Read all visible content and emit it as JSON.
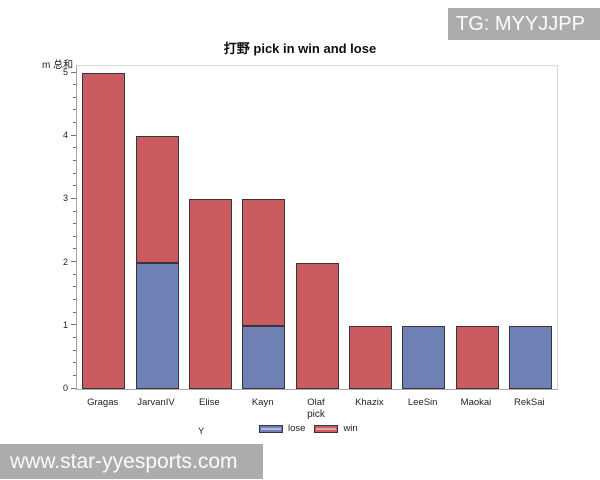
{
  "watermarks": {
    "top_right": "TG: MYYJJPP",
    "bottom_left": "www.star-yyesports.com"
  },
  "chart_data": {
    "type": "bar",
    "stacked": true,
    "title": "打野 pick in win and lose",
    "xlabel": "pick",
    "ylabel": "m 总和",
    "ylim": [
      0,
      5
    ],
    "yticks": [
      0,
      1,
      2,
      3,
      4,
      5
    ],
    "minor_ticks_per_interval": 4,
    "grid": false,
    "categories": [
      "Gragas",
      "JarvanIV",
      "Elise",
      "Kayn",
      "Olaf",
      "Khazix",
      "LeeSin",
      "Maokai",
      "RekSai"
    ],
    "series": [
      {
        "name": "lose",
        "color": "#6f80b5",
        "values": [
          0,
          2,
          0,
          1,
          0,
          0,
          1,
          0,
          1
        ]
      },
      {
        "name": "win",
        "color": "#ca5b5e",
        "values": [
          5,
          2,
          3,
          2,
          2,
          1,
          0,
          1,
          0
        ]
      }
    ],
    "totals": [
      5,
      4,
      3,
      3,
      2,
      1,
      1,
      1,
      1
    ],
    "legend": {
      "title": "Y",
      "position": "bottom",
      "entries": [
        "lose",
        "win"
      ]
    }
  },
  "colors": {
    "lose": "#6f80b5",
    "win": "#ca5b5e",
    "bar_outline": "#35353b",
    "watermark_bg": "#acacac"
  }
}
